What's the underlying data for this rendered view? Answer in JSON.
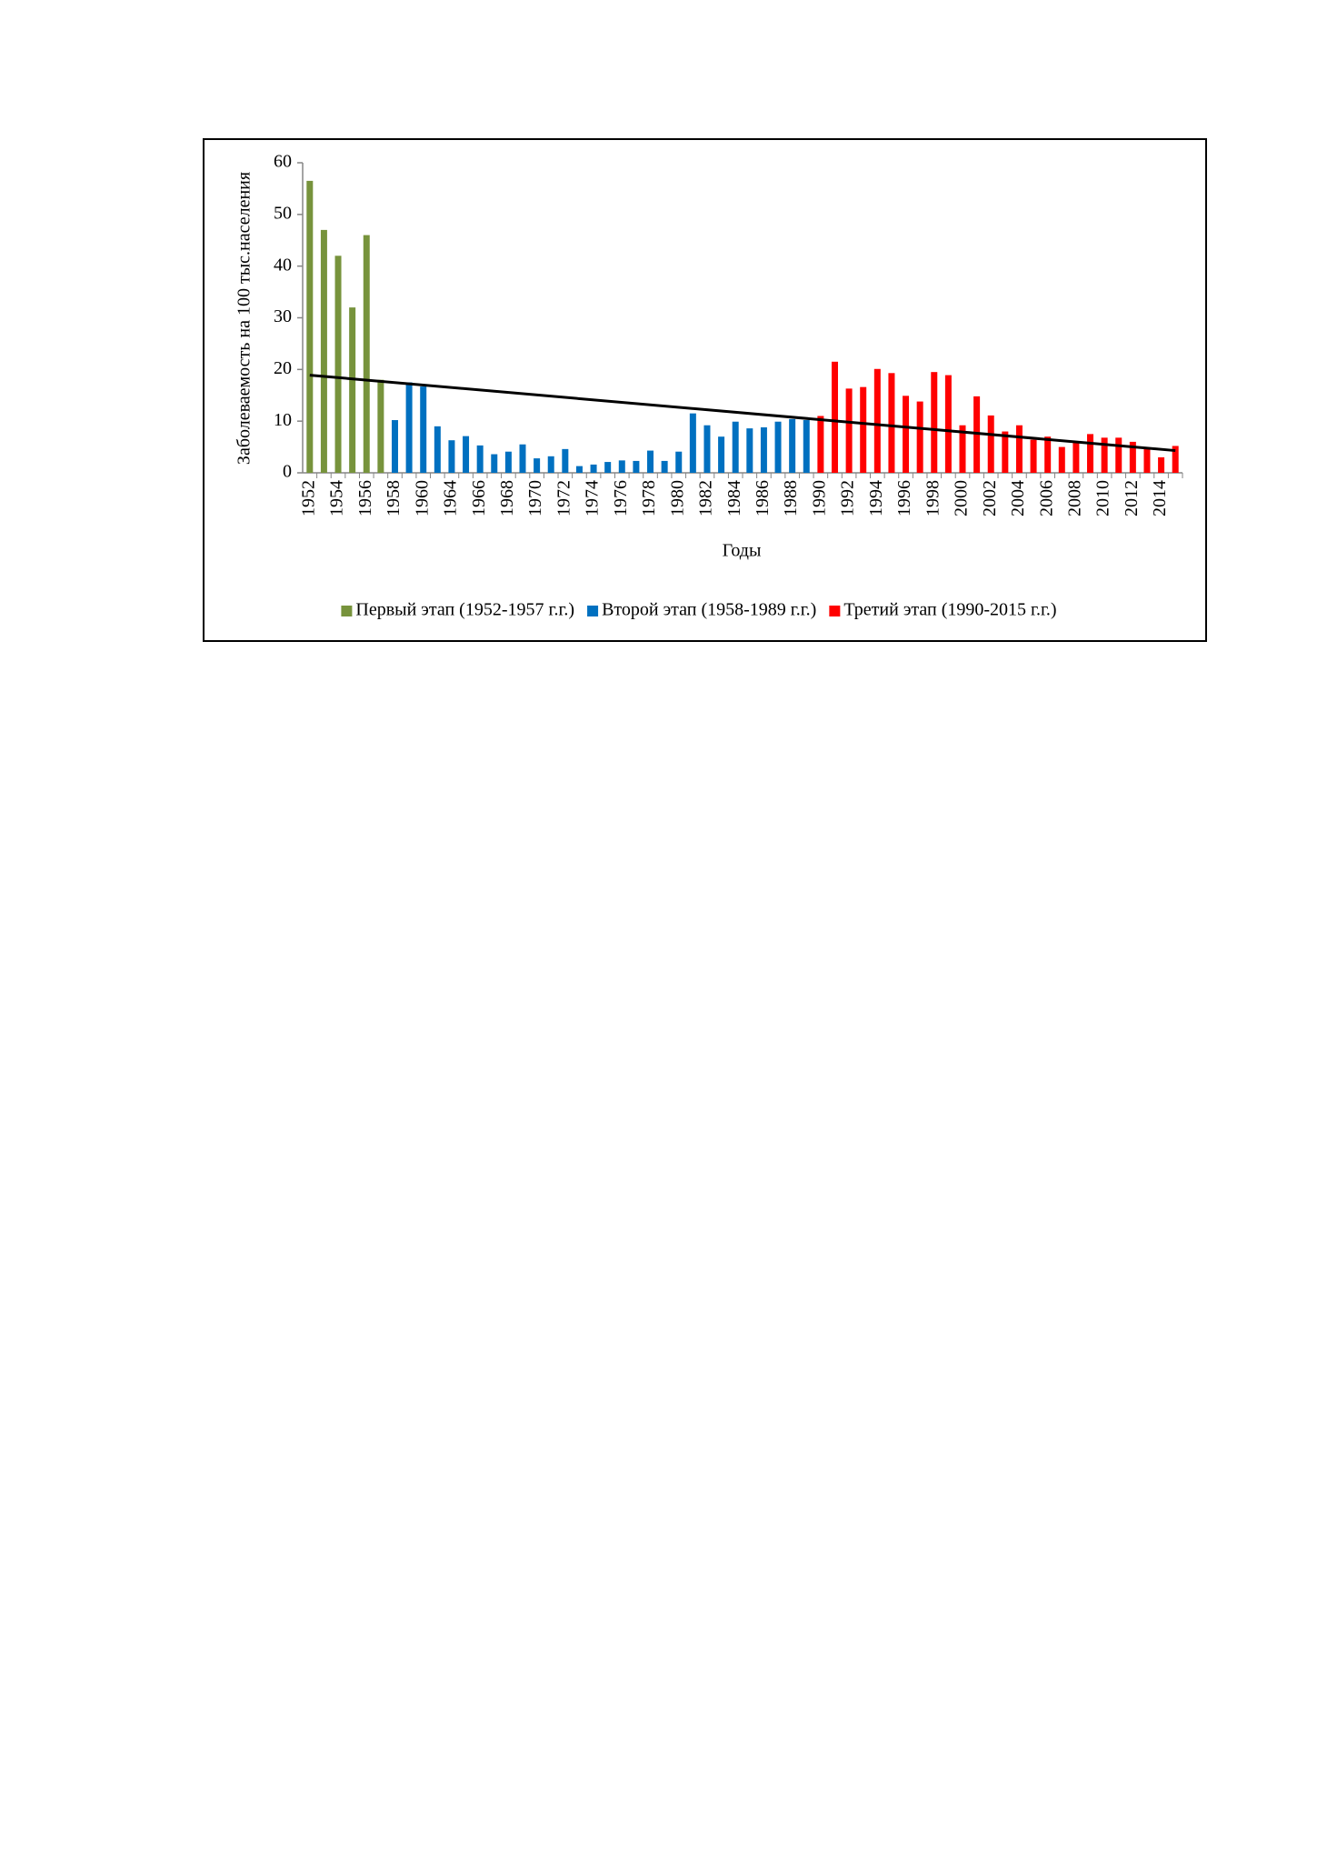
{
  "chart_data": {
    "type": "bar",
    "y_label": "Заболеваемость на 100 тыс.населения",
    "x_label": "Годы",
    "categories": [
      "1952",
      null,
      "1954",
      null,
      "1956",
      null,
      "1958",
      null,
      "1960",
      null,
      "1964",
      null,
      "1966",
      null,
      "1968",
      null,
      "1970",
      null,
      "1972",
      null,
      "1974",
      null,
      "1976",
      null,
      "1978",
      null,
      "1980",
      null,
      "1982",
      null,
      "1984",
      null,
      "1986",
      null,
      "1988",
      null,
      "1990",
      null,
      "1992",
      null,
      "1994",
      null,
      "1996",
      null,
      "1998",
      null,
      "2000",
      null,
      "2002",
      null,
      "2004",
      null,
      "2006",
      null,
      "2008",
      null,
      "2010",
      null,
      "2012",
      null,
      "2014",
      null
    ],
    "series": [
      {
        "name": "Первый этап (1952-1957 г.г.)",
        "color": "#77933c",
        "values": [
          56.5,
          47,
          42,
          32,
          46,
          18,
          null,
          null,
          null,
          null,
          null,
          null,
          null,
          null,
          null,
          null,
          null,
          null,
          null,
          null,
          null,
          null,
          null,
          null,
          null,
          null,
          null,
          null,
          null,
          null,
          null,
          null,
          null,
          null,
          null,
          null,
          null,
          null,
          null,
          null,
          null,
          null,
          null,
          null,
          null,
          null,
          null,
          null,
          null,
          null,
          null,
          null,
          null,
          null,
          null,
          null,
          null,
          null,
          null,
          null,
          null,
          null
        ]
      },
      {
        "name": "Второй этап (1958-1989 г.г.)",
        "color": "#0070c0",
        "values": [
          null,
          null,
          null,
          null,
          null,
          null,
          10.2,
          17.5,
          16.7,
          9,
          6.3,
          7.1,
          5.3,
          3.6,
          4.1,
          5.5,
          2.8,
          3.2,
          4.6,
          1.3,
          1.6,
          2.1,
          2.4,
          2.3,
          4.3,
          2.3,
          4.1,
          11.5,
          9.2,
          7,
          9.9,
          8.6,
          8.8,
          9.9,
          10.4,
          10.2,
          null,
          null,
          null,
          null,
          null,
          null,
          null,
          null,
          null,
          null,
          null,
          null,
          null,
          null,
          null,
          null,
          null,
          null,
          null,
          null,
          null,
          null,
          null,
          null,
          null,
          null
        ]
      },
      {
        "name": "Третий этап (1990-2015 г.г.)",
        "color": "#ff0000",
        "values": [
          null,
          null,
          null,
          null,
          null,
          null,
          null,
          null,
          null,
          null,
          null,
          null,
          null,
          null,
          null,
          null,
          null,
          null,
          null,
          null,
          null,
          null,
          null,
          null,
          null,
          null,
          null,
          null,
          null,
          null,
          null,
          null,
          null,
          null,
          null,
          null,
          11,
          21.5,
          16.3,
          16.6,
          20.1,
          19.3,
          14.9,
          13.8,
          19.5,
          18.9,
          9.2,
          14.8,
          11.1,
          8,
          9.2,
          6.4,
          7,
          5,
          5.8,
          7.5,
          6.8,
          6.8,
          6,
          4.6,
          3,
          5.2
        ]
      }
    ],
    "trend": {
      "color": "#000000",
      "start": 18.9,
      "end": 4.3
    },
    "ylim": [
      0,
      60
    ],
    "yticks": [
      0,
      10,
      20,
      30,
      40,
      50,
      60
    ],
    "legend": "bottom"
  }
}
